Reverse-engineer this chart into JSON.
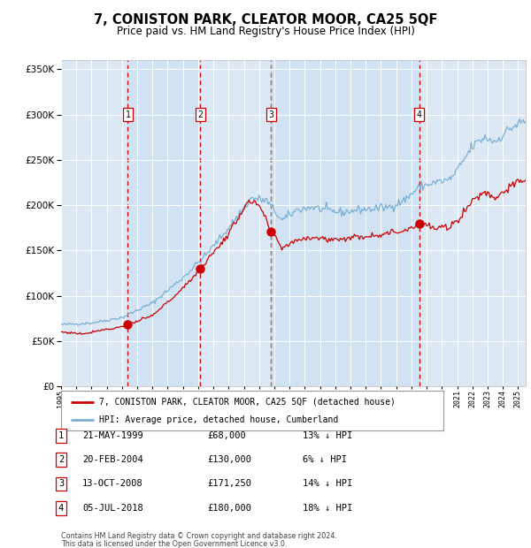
{
  "title": "7, CONISTON PARK, CLEATOR MOOR, CA25 5QF",
  "subtitle": "Price paid vs. HM Land Registry's House Price Index (HPI)",
  "footer_line1": "Contains HM Land Registry data © Crown copyright and database right 2024.",
  "footer_line2": "This data is licensed under the Open Government Licence v3.0.",
  "legend_property": "7, CONISTON PARK, CLEATOR MOOR, CA25 5QF (detached house)",
  "legend_hpi": "HPI: Average price, detached house, Cumberland",
  "transactions": [
    {
      "num": 1,
      "date": "21-MAY-1999",
      "price": 68000,
      "hpi_diff": "13% ↓ HPI"
    },
    {
      "num": 2,
      "date": "20-FEB-2004",
      "price": 130000,
      "hpi_diff": "6% ↓ HPI"
    },
    {
      "num": 3,
      "date": "13-OCT-2008",
      "price": 171250,
      "hpi_diff": "14% ↓ HPI"
    },
    {
      "num": 4,
      "date": "05-JUL-2018",
      "price": 180000,
      "hpi_diff": "18% ↓ HPI"
    }
  ],
  "transaction_dates_decimal": [
    1999.38,
    2004.13,
    2008.78,
    2018.51
  ],
  "transaction_prices": [
    68000,
    130000,
    171250,
    180000
  ],
  "ylim": [
    0,
    360000
  ],
  "yticks": [
    0,
    50000,
    100000,
    150000,
    200000,
    250000,
    300000,
    350000
  ],
  "xstart": 1995.5,
  "xend": 2025.5,
  "background_color": "#dce9f5",
  "hpi_color": "#7bafd4",
  "property_color": "#cc0000",
  "grid_color": "#ffffff",
  "hpi_waypoints": [
    [
      1995.0,
      68000
    ],
    [
      1997.0,
      70000
    ],
    [
      1999.0,
      76000
    ],
    [
      2001.0,
      92000
    ],
    [
      2003.0,
      120000
    ],
    [
      2004.5,
      145000
    ],
    [
      2006.0,
      175000
    ],
    [
      2007.5,
      208000
    ],
    [
      2008.5,
      205000
    ],
    [
      2009.5,
      183000
    ],
    [
      2010.5,
      195000
    ],
    [
      2011.5,
      198000
    ],
    [
      2012.5,
      194000
    ],
    [
      2013.5,
      192000
    ],
    [
      2014.5,
      195000
    ],
    [
      2015.5,
      196000
    ],
    [
      2016.5,
      198000
    ],
    [
      2017.5,
      205000
    ],
    [
      2018.5,
      220000
    ],
    [
      2019.5,
      225000
    ],
    [
      2020.5,
      228000
    ],
    [
      2021.0,
      238000
    ],
    [
      2022.0,
      265000
    ],
    [
      2022.8,
      275000
    ],
    [
      2023.5,
      270000
    ],
    [
      2024.0,
      278000
    ],
    [
      2024.5,
      285000
    ],
    [
      2025.3,
      292000
    ]
  ],
  "prop_waypoints": [
    [
      1995.0,
      60000
    ],
    [
      1996.5,
      58000
    ],
    [
      1997.5,
      62000
    ],
    [
      1998.5,
      64000
    ],
    [
      1999.38,
      68000
    ],
    [
      2001.0,
      78000
    ],
    [
      2003.0,
      108000
    ],
    [
      2004.13,
      130000
    ],
    [
      2006.0,
      168000
    ],
    [
      2007.2,
      203000
    ],
    [
      2008.0,
      200000
    ],
    [
      2008.78,
      171250
    ],
    [
      2009.5,
      153000
    ],
    [
      2010.5,
      162000
    ],
    [
      2011.5,
      165000
    ],
    [
      2012.5,
      162000
    ],
    [
      2013.5,
      163000
    ],
    [
      2014.5,
      165000
    ],
    [
      2015.5,
      167000
    ],
    [
      2016.5,
      169000
    ],
    [
      2017.5,
      172000
    ],
    [
      2018.51,
      180000
    ],
    [
      2019.0,
      178000
    ],
    [
      2019.5,
      174000
    ],
    [
      2020.5,
      176000
    ],
    [
      2021.0,
      183000
    ],
    [
      2022.0,
      205000
    ],
    [
      2022.8,
      215000
    ],
    [
      2023.5,
      208000
    ],
    [
      2024.0,
      215000
    ],
    [
      2024.5,
      220000
    ],
    [
      2025.3,
      228000
    ]
  ]
}
